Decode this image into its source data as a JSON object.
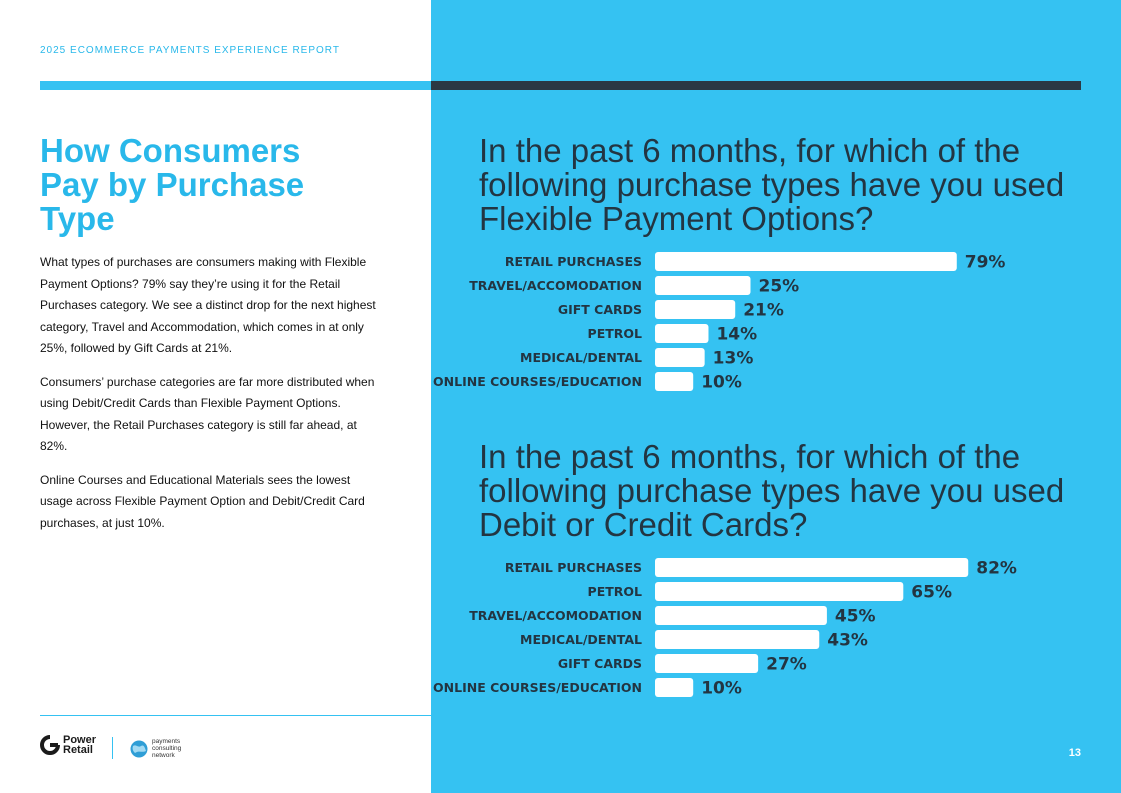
{
  "header": {
    "report_title": "2025 ECOMMERCE PAYMENTS EXPERIENCE REPORT"
  },
  "left": {
    "heading": "How Consumers Pay by Purchase Type",
    "paragraphs": [
      "What types of purchases are consumers making with Flexible Payment Options? 79% say they’re using it for the Retail Purchases category. We see a distinct drop for the next highest category, Travel and Accommodation, which comes in at only 25%, followed by Gift Cards at 21%.",
      "Consumers’ purchase categories are far more distributed when using Debit/Credit Cards than Flexible Payment Options. However, the Retail Purchases category is still far ahead, at 82%.",
      "Online Courses and Educational Materials sees the lowest usage across Flexible Payment Option and Debit/Credit Card purchases, at just 10%."
    ]
  },
  "chart_data": [
    {
      "type": "bar",
      "orientation": "horizontal",
      "title": "In the past 6 months, for which of the following purchase types have you used Flexible Payment Options?",
      "categories": [
        "RETAIL PURCHASES",
        "TRAVEL/ACCOMODATION",
        "GIFT CARDS",
        "PETROL",
        "MEDICAL/DENTAL",
        "ONLINE COURSES/EDUCATION"
      ],
      "values": [
        79,
        25,
        21,
        14,
        13,
        10
      ],
      "value_labels": [
        "79%",
        "25%",
        "21%",
        "14%",
        "13%",
        "10%"
      ],
      "unit": "%",
      "xlim": [
        0,
        100
      ],
      "bar_color": "#ffffff",
      "label_color": "#233542"
    },
    {
      "type": "bar",
      "orientation": "horizontal",
      "title": "In the past 6 months, for which of the following purchase types have you used Debit or Credit Cards?",
      "categories": [
        "RETAIL PURCHASES",
        "PETROL",
        "TRAVEL/ACCOMODATION",
        "MEDICAL/DENTAL",
        "GIFT CARDS",
        "ONLINE COURSES/EDUCATION"
      ],
      "values": [
        82,
        65,
        45,
        43,
        27,
        10
      ],
      "value_labels": [
        "82%",
        "65%",
        "45%",
        "43%",
        "27%",
        "10%"
      ],
      "unit": "%",
      "xlim": [
        0,
        100
      ],
      "bar_color": "#ffffff",
      "label_color": "#233542"
    }
  ],
  "footer": {
    "logo_power": [
      "Power",
      "Retail"
    ],
    "logo_pcn": [
      "payments",
      "consulting",
      "network"
    ],
    "page_number": "13"
  },
  "colors": {
    "accent": "#35c2f2",
    "dark": "#2b3844",
    "text": "#233542"
  }
}
